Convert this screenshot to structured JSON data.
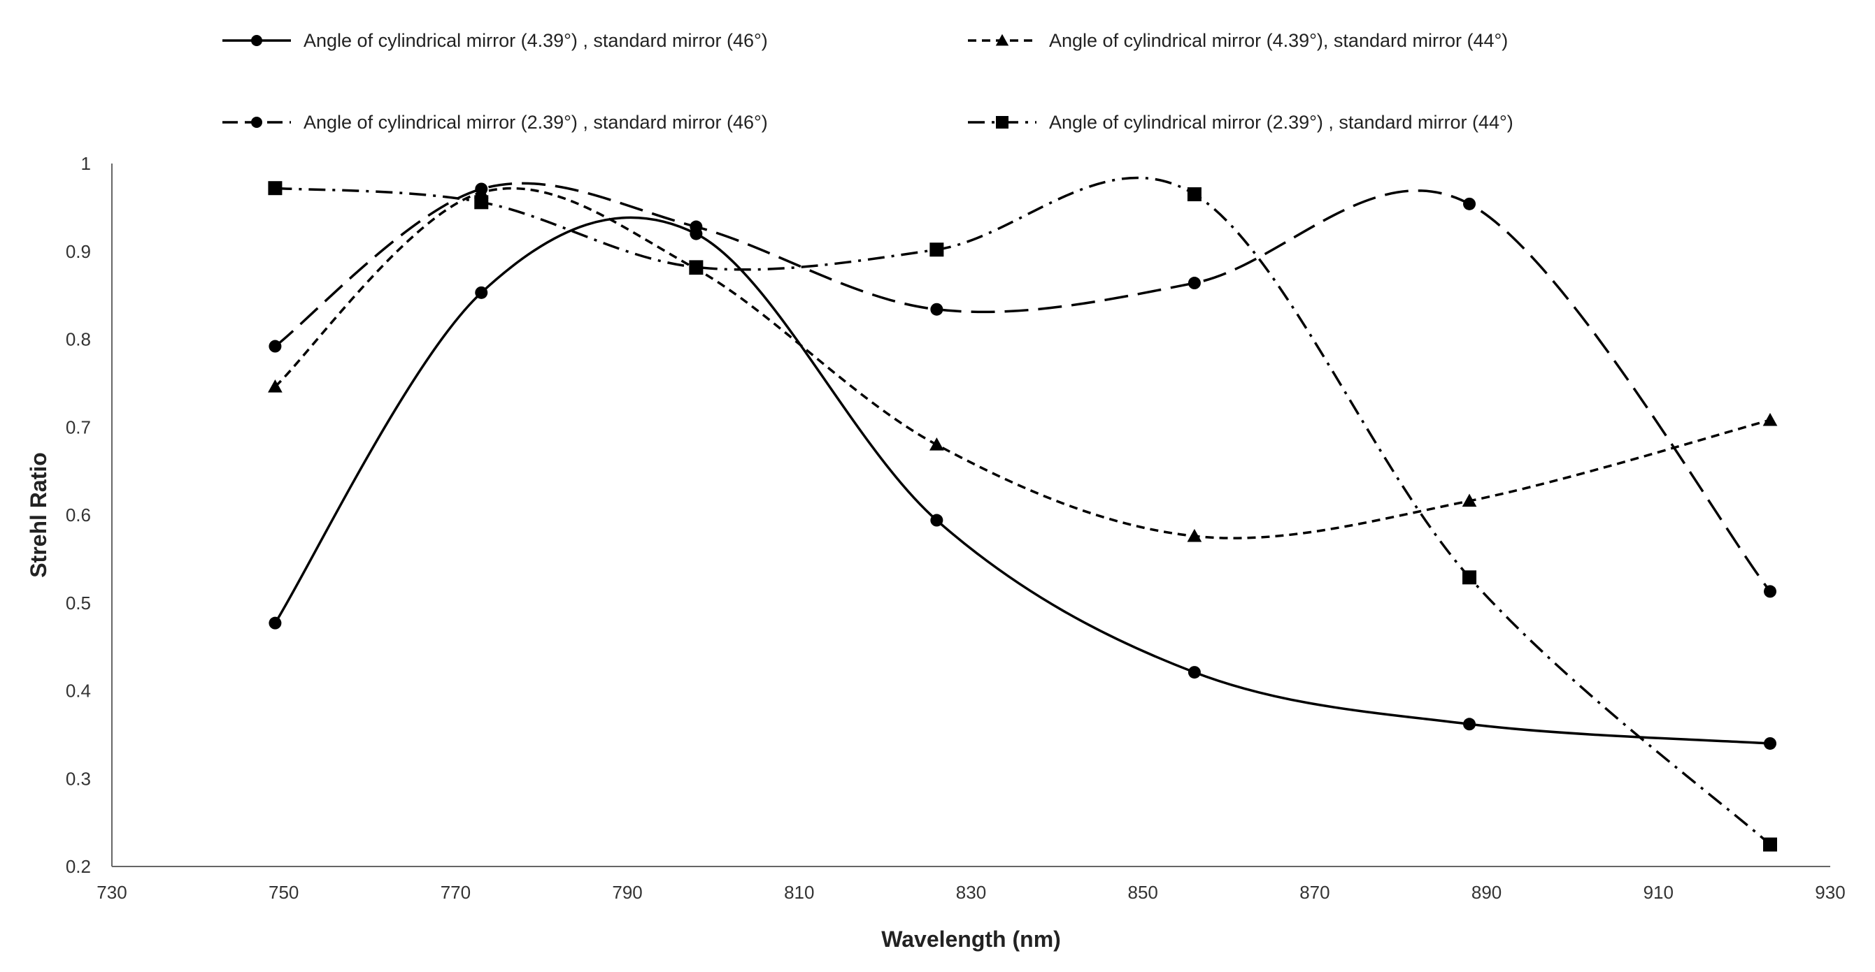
{
  "chart_data": {
    "type": "line",
    "title": "",
    "xlabel": "Wavelength (nm)",
    "ylabel": "Strehl Ratio",
    "xlim": [
      730,
      930
    ],
    "ylim": [
      0.2,
      1.0
    ],
    "xticks": [
      730,
      750,
      770,
      790,
      810,
      830,
      850,
      870,
      890,
      910,
      930
    ],
    "xtick_labels": [
      "730",
      "750",
      "770",
      "790",
      "810",
      "830",
      "850",
      "870",
      "890",
      "910",
      "930"
    ],
    "yticks": [
      0.2,
      0.3,
      0.4,
      0.5,
      0.6,
      0.7,
      0.8,
      0.9,
      1.0
    ],
    "ytick_labels": [
      "0.2",
      "0.3",
      "0.4",
      "0.5",
      "0.6",
      "0.7",
      "0.8",
      "0.9",
      "1"
    ],
    "grid": false,
    "legend_position": "top",
    "x": [
      749,
      773,
      798,
      826,
      856,
      888,
      923
    ],
    "series": [
      {
        "id": "s1",
        "name": "Angle of cylindrical mirror (4.39°) , standard mirror (46°)",
        "values": [
          0.477,
          0.853,
          0.92,
          0.594,
          0.421,
          0.362,
          0.34
        ],
        "dash": "solid",
        "marker": "circle",
        "color": "#000000"
      },
      {
        "id": "s2",
        "name": "Angle of cylindrical mirror (4.39°), standard mirror (44°)",
        "values": [
          0.746,
          0.967,
          0.88,
          0.68,
          0.576,
          0.616,
          0.708
        ],
        "dash": "short-dash",
        "marker": "triangle",
        "color": "#000000"
      },
      {
        "id": "s3",
        "name": "Angle of cylindrical mirror (2.39°) , standard mirror (46°)",
        "values": [
          0.792,
          0.971,
          0.928,
          0.834,
          0.864,
          0.954,
          0.513
        ],
        "dash": "long-dash",
        "marker": "circle",
        "color": "#000000"
      },
      {
        "id": "s4",
        "name": "Angle of cylindrical mirror  (2.39°) , standard mirror (44°)",
        "values": [
          0.972,
          0.956,
          0.882,
          0.902,
          0.965,
          0.529,
          0.225
        ],
        "dash": "dash-dot",
        "marker": "square",
        "color": "#000000"
      }
    ]
  }
}
